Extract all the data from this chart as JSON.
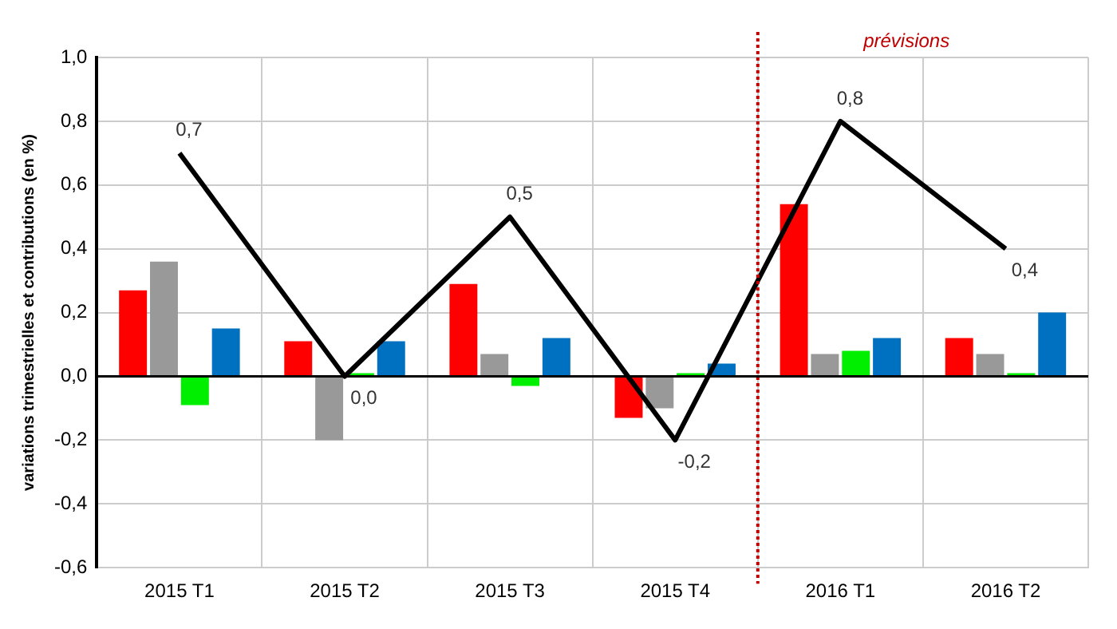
{
  "chart_data": {
    "type": "bar",
    "ylabel": "variations trimestrielles et contributions (en %)",
    "categories": [
      "2015 T1",
      "2015 T2",
      "2015 T3",
      "2015 T4",
      "2016 T1",
      "2016 T2"
    ],
    "series": [
      {
        "color": "#ff0000",
        "values": [
          0.27,
          0.11,
          0.29,
          -0.13,
          0.54,
          0.12
        ]
      },
      {
        "color": "#999999",
        "values": [
          0.36,
          -0.2,
          0.07,
          -0.1,
          0.07,
          0.07
        ]
      },
      {
        "color": "#00ee00",
        "values": [
          -0.09,
          0.01,
          -0.03,
          0.01,
          0.08,
          0.01
        ]
      },
      {
        "color": "#0070c0",
        "values": [
          0.15,
          0.11,
          0.12,
          0.04,
          0.12,
          0.2
        ]
      },
      {
        "type": "line",
        "color": "#000000",
        "values": [
          0.7,
          0.0,
          0.5,
          -0.2,
          0.8,
          0.4
        ],
        "value_labels": [
          "0,7",
          "0,0",
          "0,5",
          "-0,2",
          "0,8",
          "0,4"
        ]
      }
    ],
    "ylim": [
      -0.6,
      1.0
    ],
    "yticks": [
      {
        "value": -0.6,
        "label": "-0,6"
      },
      {
        "value": -0.4,
        "label": "-0,4"
      },
      {
        "value": -0.2,
        "label": "-0,2"
      },
      {
        "value": 0,
        "label": "0,0"
      },
      {
        "value": 0.2,
        "label": "0,2"
      },
      {
        "value": 0.4,
        "label": "0,4"
      },
      {
        "value": 0.6,
        "label": "0,6"
      },
      {
        "value": 0.8,
        "label": "0,8"
      },
      {
        "value": 1.0,
        "label": "1,0"
      }
    ],
    "ref_lines": [
      {
        "axis": "x",
        "value": "2016 T1",
        "label": "prévisions",
        "color": "#c00000",
        "line_style": "dotted"
      }
    ],
    "grid": true,
    "legend": false,
    "marker": "none",
    "line_style": "solid"
  }
}
